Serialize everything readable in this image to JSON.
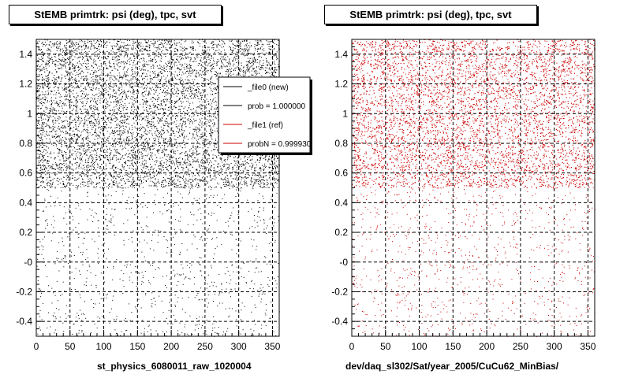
{
  "chart_data": [
    {
      "type": "scatter",
      "title": "StEMB primtrk: psi (deg), tpc, svt",
      "caption": "st_physics_6080011_raw_1020004",
      "xlim": [
        0,
        360
      ],
      "ylim": [
        -0.5,
        1.5
      ],
      "x_ticks": [
        0,
        50,
        100,
        150,
        200,
        250,
        300,
        350
      ],
      "x_tick_labels": [
        "0",
        "50",
        "100",
        "150",
        "200",
        "250",
        "300",
        "350"
      ],
      "y_ticks": [
        -0.4,
        -0.2,
        0,
        0.2,
        0.4,
        0.6,
        0.8,
        1,
        1.2,
        1.4
      ],
      "y_tick_labels": [
        "-0.4",
        "-0.2",
        "-0",
        "0.2",
        "0.4",
        "0.6",
        "0.8",
        "1",
        "1.2",
        "1.4"
      ],
      "grid": true,
      "point_color": "#000000",
      "series": [
        {
          "name": "_file0 (new)",
          "color": "#000000",
          "density": [
            {
              "y": [
                -0.5,
                0.5
              ],
              "points": 900
            },
            {
              "y": [
                0.5,
                1.5
              ],
              "points": 9000
            }
          ]
        }
      ],
      "legend": {
        "placement": "top-right",
        "entries": [
          {
            "label": "_file0 (new)",
            "color": "#000000"
          },
          {
            "label": "prob = 1.000000",
            "color": "#000000"
          },
          {
            "label": "_file1 (ref)",
            "color": "#cc0000"
          },
          {
            "label": "probN = 0.999930",
            "color": "#cc0000"
          }
        ]
      }
    },
    {
      "type": "scatter",
      "title": "StEMB primtrk: psi (deg), tpc, svt",
      "caption": "dev/daq_sl302/Sat/year_2005/CuCu62_MinBias/",
      "xlim": [
        0,
        360
      ],
      "ylim": [
        -0.5,
        1.5
      ],
      "x_ticks": [
        0,
        50,
        100,
        150,
        200,
        250,
        300,
        350
      ],
      "x_tick_labels": [
        "0",
        "50",
        "100",
        "150",
        "200",
        "250",
        "300",
        "350"
      ],
      "y_ticks": [
        -0.4,
        -0.2,
        0,
        0.2,
        0.4,
        0.6,
        0.8,
        1,
        1.2,
        1.4
      ],
      "y_tick_labels": [
        "-0.4",
        "-0.2",
        "-0",
        "0.2",
        "0.4",
        "0.6",
        "0.8",
        "1",
        "1.2",
        "1.4"
      ],
      "grid": true,
      "point_color": "#cc0000",
      "series": [
        {
          "name": "_file1 (ref)",
          "color": "#cc0000",
          "density": [
            {
              "y": [
                -0.5,
                0.5
              ],
              "points": 900
            },
            {
              "y": [
                0.5,
                1.5
              ],
              "points": 9000
            }
          ]
        }
      ]
    }
  ]
}
